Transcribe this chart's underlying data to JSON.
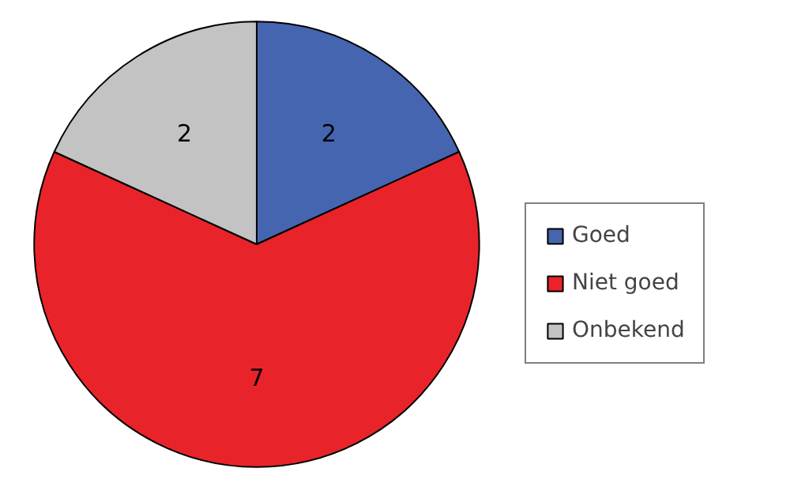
{
  "chart_data": {
    "type": "pie",
    "categories": [
      "Goed",
      "Niet goed",
      "Onbekend"
    ],
    "values": [
      2,
      7,
      2
    ],
    "colors": [
      "#4565b0",
      "#e8242a",
      "#c3c3c3"
    ],
    "data_labels": true,
    "legend": "right"
  }
}
